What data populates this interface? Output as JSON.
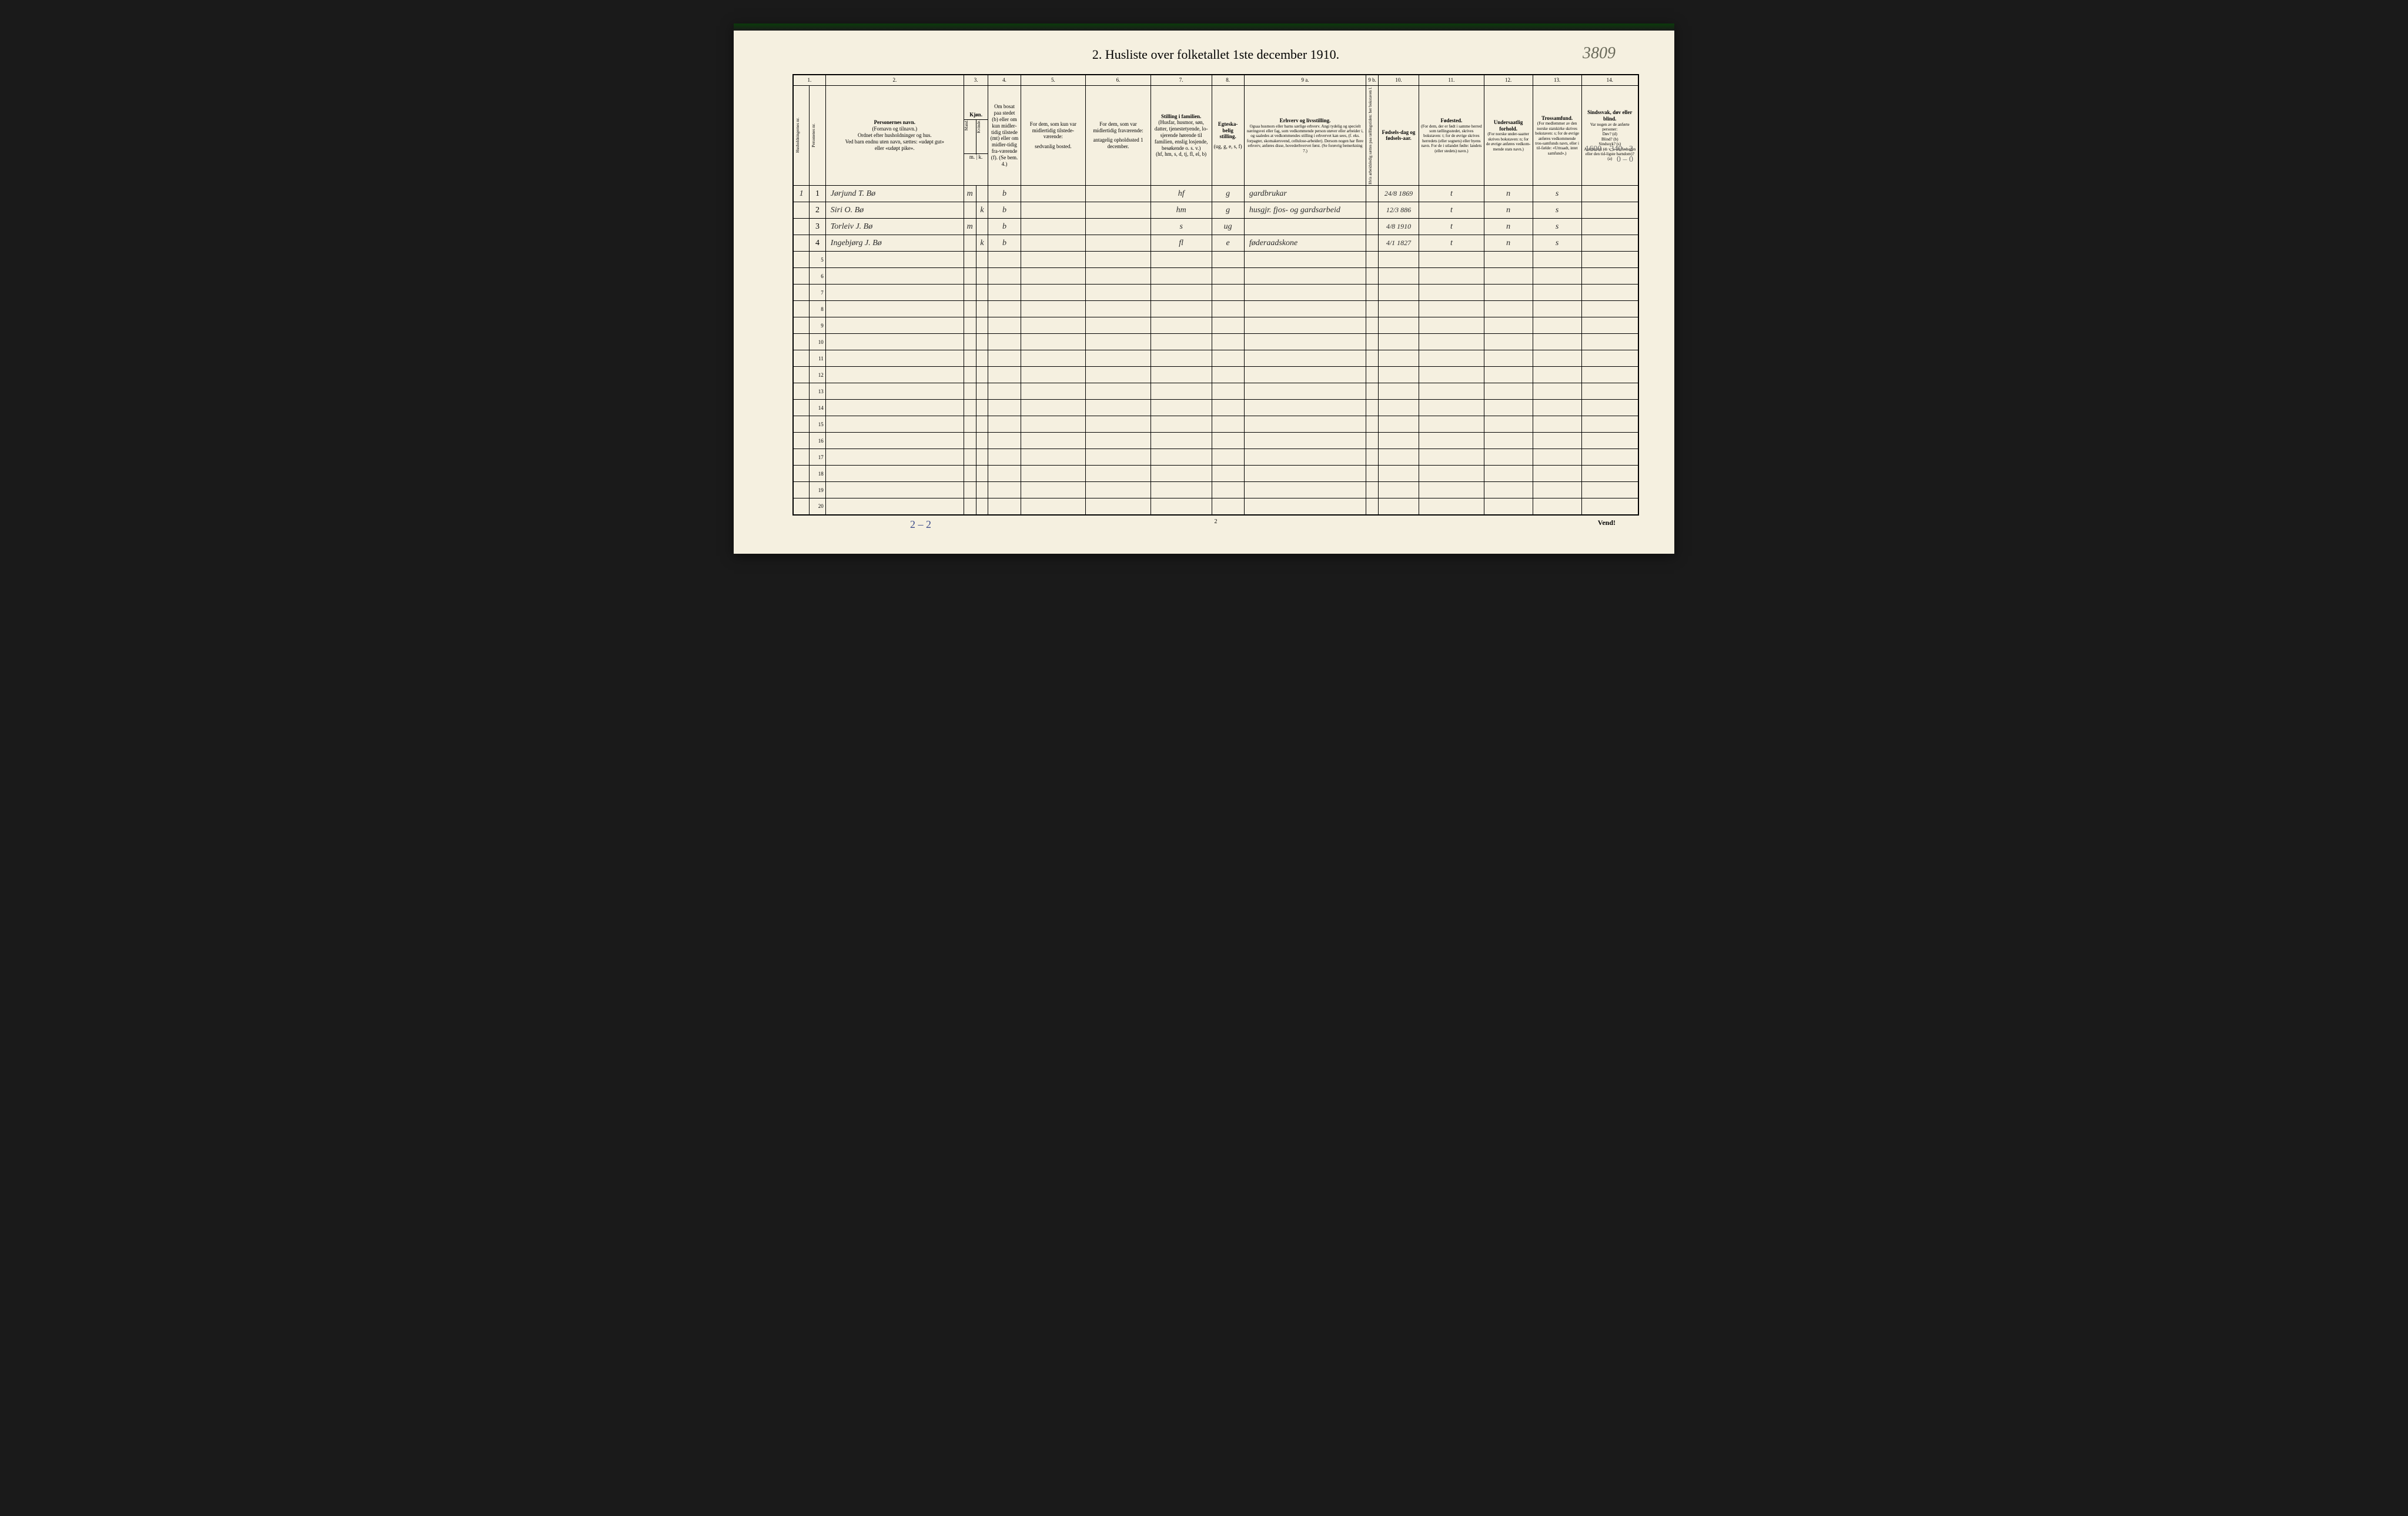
{
  "page_title": "2.  Husliste over folketallet 1ste december 1910.",
  "topright_annotation": "3809",
  "margin_right_annotations": [
    "1600 – 340 - 2",
    "0 – 0"
  ],
  "bottom": {
    "left_note": "2 – 2",
    "center_note": "2",
    "right_note": "Vend!"
  },
  "columns": {
    "numbers": [
      "1.",
      "2.",
      "3.",
      "4.",
      "5.",
      "6.",
      "7.",
      "8.",
      "9 a.",
      "9 b.",
      "10.",
      "11.",
      "12.",
      "13.",
      "14."
    ],
    "h1_vert": "Husholdningernes nr.",
    "h1b_vert": "Personenes nr.",
    "h2_title": "Personernes navn.",
    "h2_sub": "(Fornavn og tilnavn.)\nOrdnet efter husholdninger og hus.\nVed barn endnu uten navn, sættes: «udøpt gut»\neller «udøpt pike».",
    "h3_title": "Kjøn.",
    "h3_sub_m": "Mand.",
    "h3_sub_k": "Kvinde.",
    "h3_mk": "m. | k.",
    "h4_text": "Om bosat paa stedet (b) eller om kun midler-tidig tilstede (mt) eller om midler-tidig fra-værende (f). (Se bem. 4.)",
    "h5_title": "For dem, som kun var midlertidig tilstede-værende:",
    "h5_sub": "sedvanlig bosted.",
    "h6_title": "For dem, som var midlertidig fraværende:",
    "h6_sub": "antagelig opholdssted 1 december.",
    "h7_title": "Stilling i familien.",
    "h7_sub": "(Husfar, husmor, søn, datter, tjenestetyende, lo-sjerende hørende til familien, enslig losjende, besøkende o. s. v.)\n(hf, hm, s, d, tj, fl, el, b)",
    "h7_note": "(Se bem. 6.)",
    "h8_title": "Egteska-belig stilling.",
    "h8_sub": "(ug, g, e, s, f)",
    "h9a_title": "Erhverv og livsstilling.",
    "h9a_sub": "Ogsaa husmors eller barns særlige erhverv. Angi tydelig og specielt næringsvei eller fag, som vedkommende person utøver eller arbeider i, og saaledes at vedkommendes stilling i erhvervet kan sees, (f. eks. forpagter, skomakersvend, cellulose-arbeider). Dersom nogen har flere erhverv, anføres disse, hovederhvervet først.\n(Se forøvrig bemerkning 7.)",
    "h9b_vert": "Hvis arbeidsledig sættes paa tællingstiden: her bokstaven l.",
    "h10_title": "Fødsels-dag og fødsels-aar.",
    "h11_title": "Fødested.",
    "h11_sub": "(For dem, der er født i samme herred som tællingsstedet, skrives bokstaven: t; for de øvrige skrives herredets (eller sognets) eller byens navn. For de i utlandet fødte: landets (eller stedets) navn.)",
    "h12_title": "Undersaatlig forhold.",
    "h12_sub": "(For norske under-saatter skrives bokstaven: n; for de øvrige anføres vedkom-mende stats navn.)",
    "h13_title": "Trossamfund.",
    "h13_sub": "(For medlemmer av den norske statskirke skrives bokstaven: s; for de øvrige anføres vedkommende tros-samfunds navn, eller i til-fælde: «Uttraadt, intet samfund».)",
    "h14_title": "Sindssvak, døv eller blind.",
    "h14_sub": "Var nogen av de anførte personer:\nDøv? (d)\nBlind? (b)\nSindssyk? (s)\nAandssvak (d. v. s. fra fødselen eller den tid-ligste barndom)? (a)"
  },
  "entries": [
    {
      "household": "1",
      "row": "1",
      "name": "Jørjund T. Bø",
      "sex_m": "m",
      "sex_k": "",
      "presence": "b",
      "family_pos": "hf",
      "marital": "g",
      "occupation": "gardbrukar",
      "birthdate": "24/8 1869",
      "birthplace": "t",
      "nationality": "n",
      "religion": "s"
    },
    {
      "household": "",
      "row": "2",
      "name": "Siri O. Bø",
      "sex_m": "",
      "sex_k": "k",
      "presence": "b",
      "family_pos": "hm",
      "marital": "g",
      "occupation": "husgjr. fjos- og gardsarbeid",
      "birthdate": "12/3 886",
      "birthplace": "t",
      "nationality": "n",
      "religion": "s"
    },
    {
      "household": "",
      "row": "3",
      "name": "Torleiv J. Bø",
      "sex_m": "m",
      "sex_k": "",
      "presence": "b",
      "family_pos": "s",
      "marital": "ug",
      "occupation": "",
      "birthdate": "4/8 1910",
      "birthplace": "t",
      "nationality": "n",
      "religion": "s"
    },
    {
      "household": "",
      "row": "4",
      "name": "Ingebjørg J. Bø",
      "sex_m": "",
      "sex_k": "k",
      "presence": "b",
      "family_pos": "fl",
      "marital": "e",
      "occupation": "føderaadskone",
      "birthdate": "4/1 1827",
      "birthplace": "t",
      "nationality": "n",
      "religion": "s"
    }
  ],
  "empty_rows": [
    "5",
    "6",
    "7",
    "8",
    "9",
    "10",
    "11",
    "12",
    "13",
    "14",
    "15",
    "16",
    "17",
    "18",
    "19",
    "20"
  ],
  "style": {
    "page_bg": "#f5f0e0",
    "body_bg": "#1a1a1a",
    "border_color": "#000000",
    "handwriting_color": "#2a2a2a",
    "blue_ink": "#3a4a8a",
    "faded_ink": "#6a6a5a"
  },
  "col_widths_pct": [
    2,
    2,
    17,
    1.5,
    1.5,
    4,
    8,
    8,
    7.5,
    4,
    15,
    1.5,
    5,
    8,
    6,
    6,
    7
  ]
}
